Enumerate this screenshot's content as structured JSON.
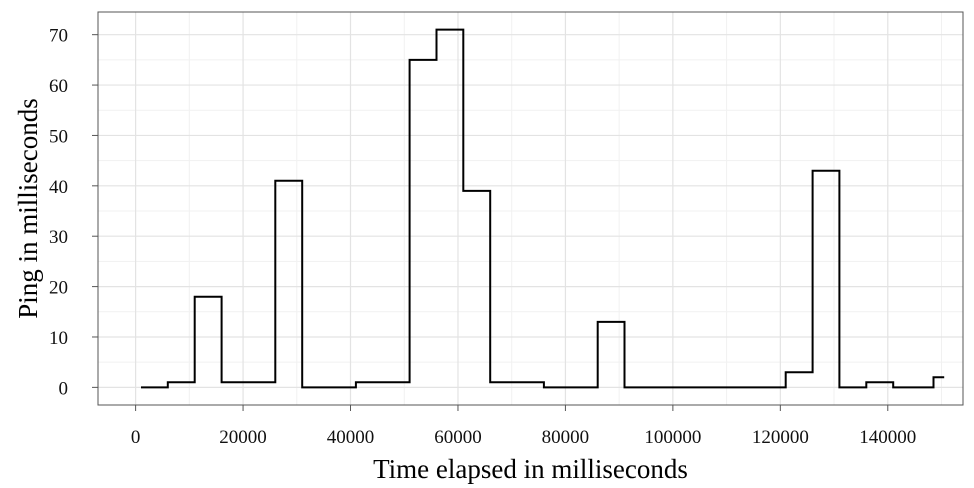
{
  "chart_data": {
    "type": "line",
    "step": "hv",
    "xlabel": "Time elapsed in milliseconds",
    "ylabel": "Ping in milliseconds",
    "xlim": [
      -7000,
      154000
    ],
    "ylim": [
      -3.5,
      74.5
    ],
    "x_ticks": [
      0,
      20000,
      40000,
      60000,
      80000,
      100000,
      120000,
      140000
    ],
    "x_tick_labels": [
      "0",
      "20000",
      "40000",
      "60000",
      "80000",
      "100000",
      "120000",
      "140000"
    ],
    "y_ticks": [
      0,
      10,
      20,
      30,
      40,
      50,
      60,
      70
    ],
    "y_tick_labels": [
      "0",
      "10",
      "20",
      "30",
      "40",
      "50",
      "60",
      "70"
    ],
    "grid": true,
    "legend": "none",
    "series": [
      {
        "x": [
          1000,
          6000,
          11000,
          16000,
          21000,
          26000,
          31000,
          36000,
          41000,
          46000,
          51000,
          56000,
          61000,
          66000,
          71000,
          76000,
          81000,
          86000,
          91000,
          96000,
          101000,
          106000,
          111000,
          116000,
          121000,
          126000,
          131000,
          136000,
          141000,
          146000,
          148500,
          150500
        ],
        "values": [
          0,
          1,
          18,
          1,
          1,
          41,
          0,
          0,
          1,
          1,
          65,
          71,
          39,
          1,
          1,
          0,
          0,
          13,
          0,
          0,
          0,
          0,
          0,
          0,
          3,
          43,
          0,
          1,
          0,
          0,
          2,
          2
        ]
      }
    ]
  }
}
